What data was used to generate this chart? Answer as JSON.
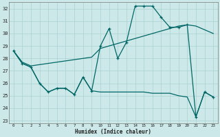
{
  "xlabel": "Humidex (Indice chaleur)",
  "bg_color": "#cce8e8",
  "grid_color": "#aad0d0",
  "line_color": "#006666",
  "xlim": [
    -0.5,
    23.5
  ],
  "ylim": [
    22.8,
    32.5
  ],
  "yticks": [
    23,
    24,
    25,
    26,
    27,
    28,
    29,
    30,
    31,
    32
  ],
  "xticks": [
    0,
    1,
    2,
    3,
    4,
    5,
    6,
    7,
    8,
    9,
    10,
    11,
    12,
    13,
    14,
    15,
    16,
    17,
    18,
    19,
    20,
    21,
    22,
    23
  ],
  "line_max_x": [
    0,
    1,
    2,
    3,
    4,
    5,
    6,
    7,
    8,
    9,
    10,
    11,
    12,
    13,
    14,
    15,
    16,
    17,
    18,
    19,
    20,
    21,
    22,
    23
  ],
  "line_max_y": [
    28.6,
    27.6,
    27.3,
    26.0,
    25.3,
    25.6,
    25.6,
    25.1,
    26.5,
    25.4,
    29.0,
    30.4,
    28.0,
    29.3,
    32.2,
    32.2,
    32.2,
    31.3,
    30.5,
    30.5,
    30.7,
    23.3,
    25.3,
    24.9
  ],
  "line_avg_x": [
    0,
    1,
    2,
    3,
    4,
    5,
    6,
    7,
    8,
    9,
    10,
    11,
    12,
    13,
    14,
    15,
    16,
    17,
    18,
    19,
    20,
    21,
    22,
    23
  ],
  "line_avg_y": [
    28.6,
    27.7,
    27.4,
    27.5,
    27.6,
    27.7,
    27.8,
    27.9,
    28.0,
    28.1,
    28.8,
    29.0,
    29.2,
    29.4,
    29.6,
    29.8,
    30.0,
    30.2,
    30.4,
    30.6,
    30.7,
    30.6,
    30.3,
    30.0
  ],
  "line_min_x": [
    0,
    1,
    2,
    3,
    4,
    5,
    6,
    7,
    8,
    9,
    10,
    11,
    12,
    13,
    14,
    15,
    16,
    17,
    18,
    19,
    20,
    21,
    22,
    23
  ],
  "line_min_y": [
    28.6,
    27.6,
    27.3,
    26.0,
    25.3,
    25.6,
    25.6,
    25.1,
    26.5,
    25.4,
    25.3,
    25.3,
    25.3,
    25.3,
    25.3,
    25.3,
    25.2,
    25.2,
    25.2,
    25.0,
    24.9,
    23.3,
    25.3,
    24.9
  ]
}
